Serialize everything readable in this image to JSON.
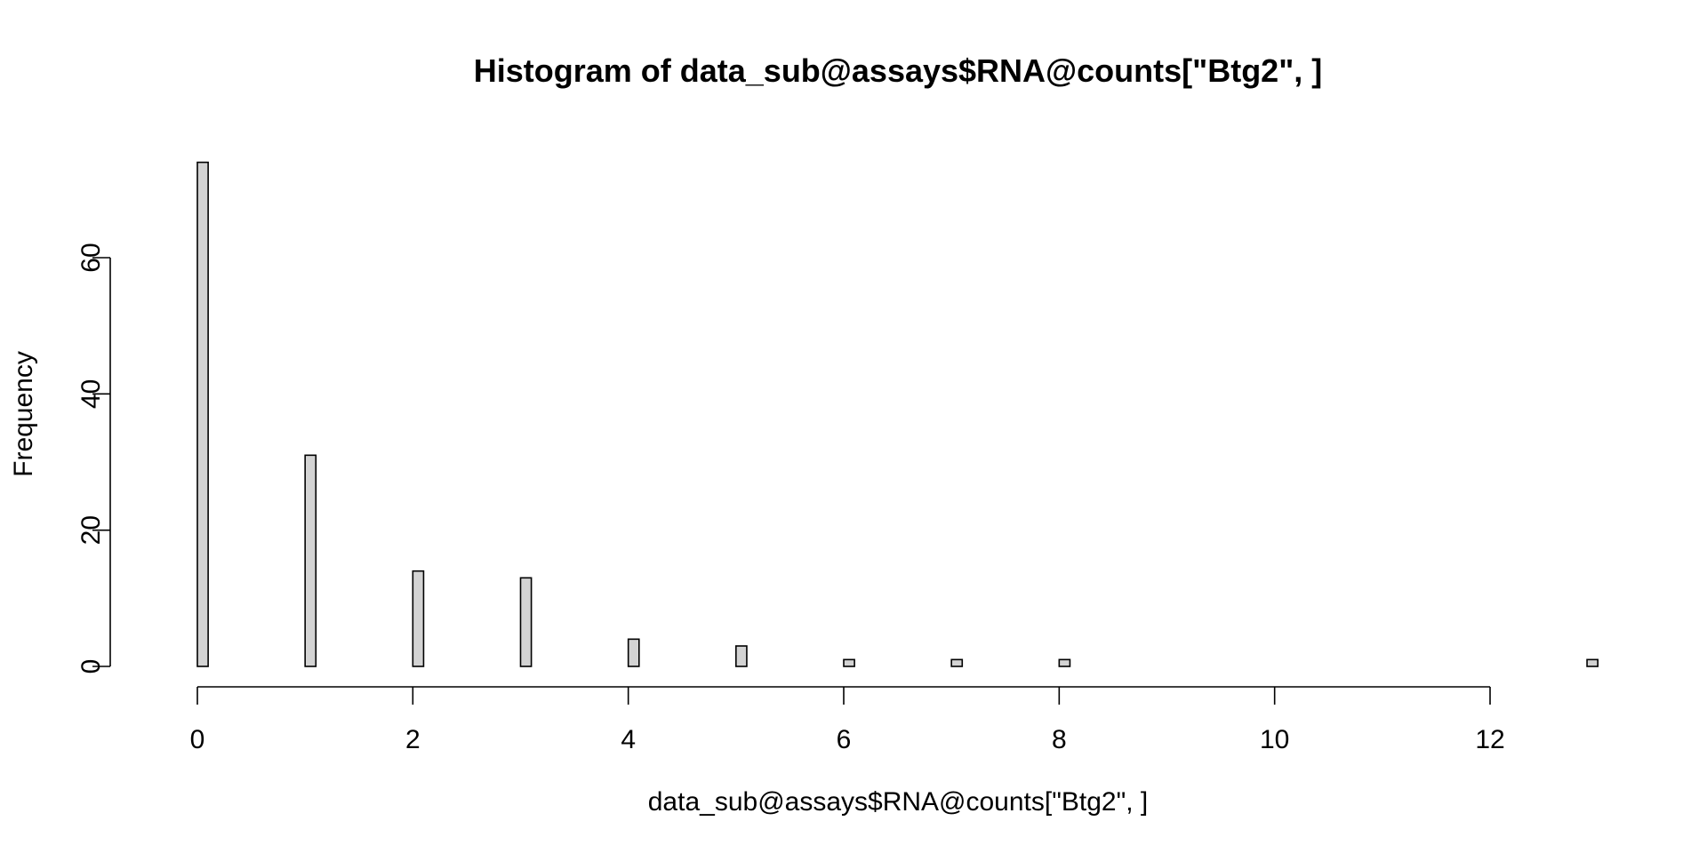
{
  "chart_data": {
    "type": "bar",
    "title": "Histogram of data_sub@assays$RNA@counts[\"Btg2\", ]",
    "xlabel": "data_sub@assays$RNA@counts[\"Btg2\", ]",
    "ylabel": "Frequency",
    "bin_width": 0.1,
    "x_range": [
      0,
      13
    ],
    "xlim": [
      0,
      13
    ],
    "ylim": [
      0,
      74
    ],
    "x_ticks": [
      0,
      2,
      4,
      6,
      8,
      10,
      12
    ],
    "y_ticks": [
      0,
      20,
      40,
      60
    ],
    "bins": [
      {
        "x": 0,
        "count": 74
      },
      {
        "x": 1,
        "count": 31
      },
      {
        "x": 2,
        "count": 14
      },
      {
        "x": 3,
        "count": 13
      },
      {
        "x": 4,
        "count": 4
      },
      {
        "x": 5,
        "count": 3
      },
      {
        "x": 6,
        "count": 1
      },
      {
        "x": 7,
        "count": 1
      },
      {
        "x": 8,
        "count": 1
      },
      {
        "x": 13,
        "count": 1
      }
    ],
    "bar_fill": "#d3d3d3",
    "bar_stroke": "#000000",
    "grid": false,
    "legend": "none"
  }
}
